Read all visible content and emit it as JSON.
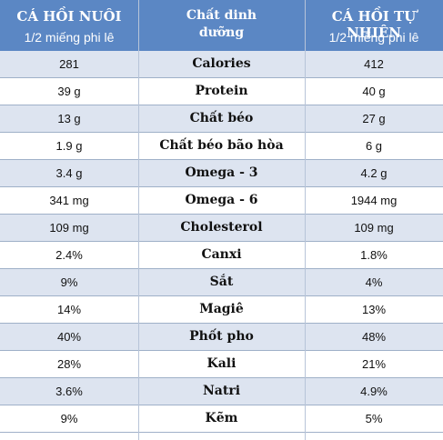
{
  "header": {
    "left_title": "CÁ HỒI NUÔI",
    "left_sub": "1/2 miếng phi lê",
    "mid_title": "Chất dinh dưỡng",
    "right_title": "CÁ HỒI TỰ NHIÊN",
    "right_sub": "1/2 miếng phi lê"
  },
  "colors": {
    "header_bg": "#5b87c4",
    "alt_row": "#dde4f0"
  },
  "rows": [
    {
      "farmed": "281",
      "nutrient": "Calories",
      "wild": "412"
    },
    {
      "farmed": "39 g",
      "nutrient": "Protein",
      "wild": "40 g"
    },
    {
      "farmed": "13 g",
      "nutrient": "Chất béo",
      "wild": "27 g"
    },
    {
      "farmed": "1.9 g",
      "nutrient": "Chất béo bão hòa",
      "wild": "6 g"
    },
    {
      "farmed": "3.4 g",
      "nutrient": "Omega - 3",
      "wild": "4.2 g"
    },
    {
      "farmed": "341 mg",
      "nutrient": "Omega - 6",
      "wild": "1944 mg"
    },
    {
      "farmed": "109 mg",
      "nutrient": "Cholesterol",
      "wild": "109 mg"
    },
    {
      "farmed": "2.4%",
      "nutrient": "Canxi",
      "wild": "1.8%"
    },
    {
      "farmed": "9%",
      "nutrient": "Sắt",
      "wild": "4%"
    },
    {
      "farmed": "14%",
      "nutrient": "Magiê",
      "wild": "13%"
    },
    {
      "farmed": "40%",
      "nutrient": "Phốt pho",
      "wild": "48%"
    },
    {
      "farmed": "28%",
      "nutrient": "Kali",
      "wild": "21%"
    },
    {
      "farmed": "3.6%",
      "nutrient": "Natri",
      "wild": "4.9%"
    },
    {
      "farmed": "9%",
      "nutrient": "Kẽm",
      "wild": "5%"
    }
  ]
}
